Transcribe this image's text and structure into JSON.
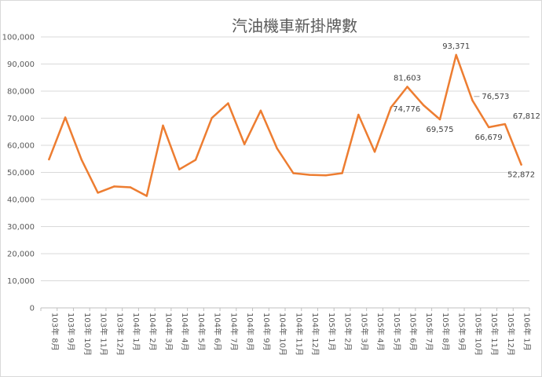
{
  "chart_data": {
    "type": "line",
    "title": "汽油機車新掛牌數",
    "xlabel": "",
    "ylabel": "",
    "ylim": [
      0,
      100000
    ],
    "yticks": [
      0,
      10000,
      20000,
      30000,
      40000,
      50000,
      60000,
      70000,
      80000,
      90000,
      100000
    ],
    "ytick_labels": [
      "0",
      "10,000",
      "20,000",
      "30,000",
      "40,000",
      "50,000",
      "60,000",
      "70,000",
      "80,000",
      "90,000",
      "100,000"
    ],
    "grid": true,
    "line_color": "#ED7D31",
    "categories": [
      "103年 8月",
      "103年 9月",
      "103年 10月",
      "103年 11月",
      "103年 12月",
      "104年 1月",
      "104年 2月",
      "104年 3月",
      "104年 4月",
      "104年 5月",
      "104年 6月",
      "104年 7月",
      "104年 8月",
      "104年 9月",
      "104年 10月",
      "104年 11月",
      "104年 12月",
      "105年 1月",
      "105年 2月",
      "105年 3月",
      "105年 4月",
      "105年 5月",
      "105年 6月",
      "105年 7月",
      "105年 8月",
      "105年 9月",
      "105年 10月",
      "105年 11月",
      "105年 12月",
      "106年 1月"
    ],
    "values": [
      54800,
      70300,
      54700,
      42500,
      44800,
      44500,
      41300,
      67300,
      51100,
      54600,
      70100,
      75500,
      60400,
      72800,
      58900,
      49700,
      49100,
      48900,
      49700,
      71300,
      57600,
      74000,
      81603,
      74776,
      69575,
      93371,
      76573,
      66679,
      67812,
      52872
    ],
    "data_labels": [
      {
        "index": 22,
        "text": "81,603",
        "pos": "above"
      },
      {
        "index": 23,
        "text": "74,776",
        "pos": "left"
      },
      {
        "index": 24,
        "text": "69,575",
        "pos": "below"
      },
      {
        "index": 25,
        "text": "93,371",
        "pos": "above"
      },
      {
        "index": 26,
        "text": "76,573",
        "pos": "right"
      },
      {
        "index": 27,
        "text": "66,679",
        "pos": "below"
      },
      {
        "index": 28,
        "text": "67,812",
        "pos": "aboveright"
      },
      {
        "index": 29,
        "text": "52,872",
        "pos": "below"
      }
    ]
  }
}
